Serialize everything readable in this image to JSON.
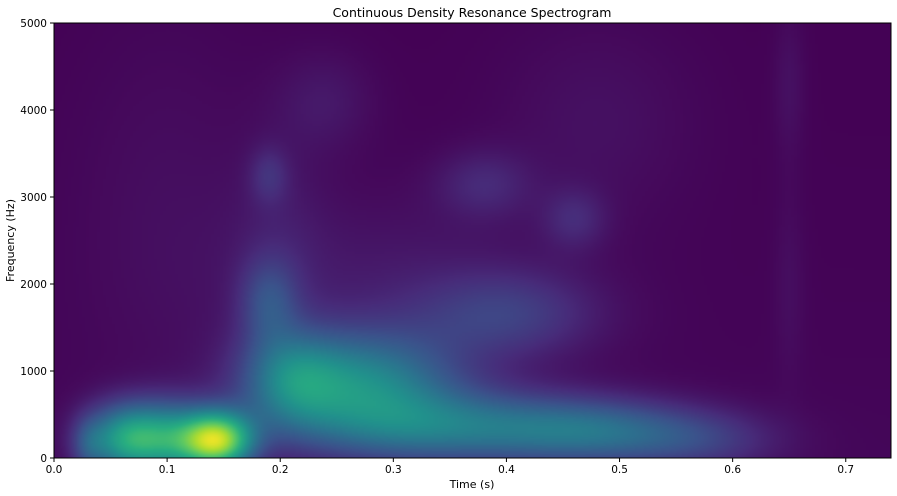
{
  "chart_data": {
    "type": "heatmap",
    "title": "Continuous Density Resonance Spectrogram",
    "xlabel": "Time (s)",
    "ylabel": "Frequency (Hz)",
    "xlim": [
      0,
      0.74
    ],
    "ylim": [
      0,
      5000
    ],
    "x_ticks": [
      0.0,
      0.1,
      0.2,
      0.3,
      0.4,
      0.5,
      0.6,
      0.7
    ],
    "x_tick_labels": [
      "0.0",
      "0.1",
      "0.2",
      "0.3",
      "0.4",
      "0.5",
      "0.6",
      "0.7"
    ],
    "y_ticks": [
      0,
      1000,
      2000,
      3000,
      4000,
      5000
    ],
    "y_tick_labels": [
      "0",
      "1000",
      "2000",
      "3000",
      "4000",
      "5000"
    ],
    "colormap": "viridis",
    "grid": false,
    "intensity_range": [
      0,
      1
    ],
    "components": [
      {
        "t": 0.03,
        "f": 150,
        "st": 0.01,
        "sf": 220,
        "a": 0.12
      },
      {
        "t": 0.06,
        "f": 220,
        "st": 0.025,
        "sf": 280,
        "a": 0.4
      },
      {
        "t": 0.1,
        "f": 220,
        "st": 0.03,
        "sf": 300,
        "a": 0.45
      },
      {
        "t": 0.145,
        "f": 200,
        "st": 0.022,
        "sf": 230,
        "a": 0.75
      },
      {
        "t": 0.27,
        "f": 870,
        "st": 0.06,
        "sf": 420,
        "a": 0.42
      },
      {
        "t": 0.21,
        "f": 900,
        "st": 0.03,
        "sf": 380,
        "a": 0.25
      },
      {
        "t": 0.35,
        "f": 350,
        "st": 0.09,
        "sf": 300,
        "a": 0.34
      },
      {
        "t": 0.48,
        "f": 300,
        "st": 0.06,
        "sf": 260,
        "a": 0.25
      },
      {
        "t": 0.57,
        "f": 200,
        "st": 0.05,
        "sf": 250,
        "a": 0.14
      },
      {
        "t": 0.19,
        "f": 1800,
        "st": 0.018,
        "sf": 350,
        "a": 0.18
      },
      {
        "t": 0.4,
        "f": 1650,
        "st": 0.055,
        "sf": 350,
        "a": 0.16
      },
      {
        "t": 0.38,
        "f": 3150,
        "st": 0.03,
        "sf": 280,
        "a": 0.1
      },
      {
        "t": 0.46,
        "f": 2750,
        "st": 0.02,
        "sf": 250,
        "a": 0.1
      },
      {
        "t": 0.19,
        "f": 3250,
        "st": 0.012,
        "sf": 230,
        "a": 0.1
      },
      {
        "t": 0.24,
        "f": 4100,
        "st": 0.03,
        "sf": 400,
        "a": 0.06
      },
      {
        "t": 0.48,
        "f": 3900,
        "st": 0.06,
        "sf": 800,
        "a": 0.04
      },
      {
        "t": 0.65,
        "f": 4300,
        "st": 0.01,
        "sf": 600,
        "a": 0.04
      },
      {
        "t": 0.65,
        "f": 2000,
        "st": 0.01,
        "sf": 800,
        "a": 0.03
      },
      {
        "t": 0.2,
        "f": 2500,
        "st": 0.03,
        "sf": 900,
        "a": 0.05
      },
      {
        "t": 0.3,
        "f": 2000,
        "st": 0.1,
        "sf": 700,
        "a": 0.06
      },
      {
        "t": 0.1,
        "f": 3000,
        "st": 0.06,
        "sf": 1500,
        "a": 0.03
      }
    ]
  }
}
